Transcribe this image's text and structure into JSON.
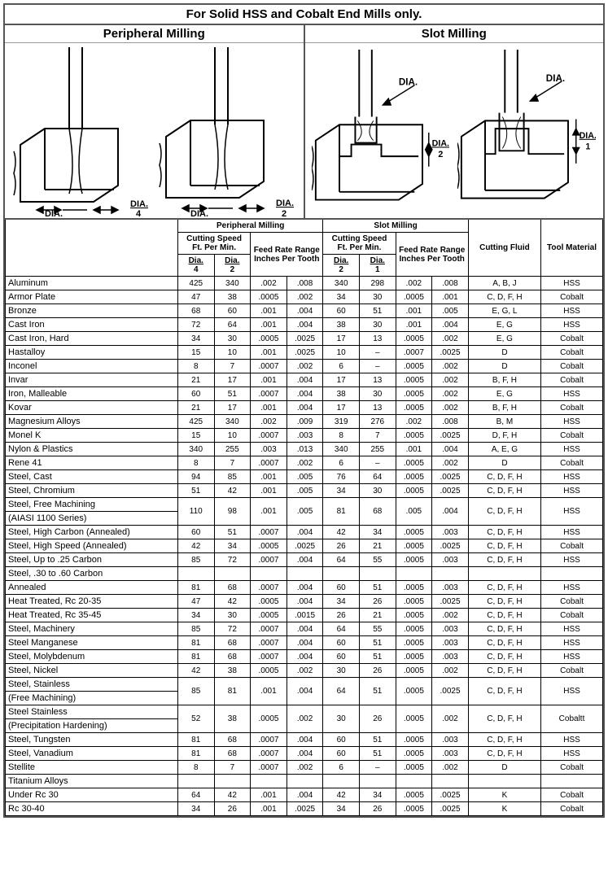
{
  "title": "For Solid HSS and Cobalt End Mills only.",
  "illus": {
    "left_title": "Peripheral Milling",
    "right_title": "Slot Milling",
    "dia_label": "DIA.",
    "frac4": "4",
    "frac2": "2",
    "frac1": "1"
  },
  "head": {
    "per": "Peripheral Milling",
    "slot": "Slot Milling",
    "cs": "Cutting Speed",
    "fpm": "Ft. Per Min.",
    "frr": "Feed Rate Range",
    "ipt": "Inches Per Tooth",
    "dia": "Dia.",
    "d4": "4",
    "d2": "2",
    "d1": "1",
    "fluid": "Cutting Fluid",
    "tool": "Tool Material"
  },
  "rows": [
    {
      "m": "Aluminum",
      "p4": "425",
      "p2": "340",
      "pa": ".002",
      "pb": ".008",
      "s2": "340",
      "s1": "298",
      "sa": ".002",
      "sb": ".008",
      "fl": "A, B, J",
      "tm": "HSS"
    },
    {
      "m": "Armor Plate",
      "p4": "47",
      "p2": "38",
      "pa": ".0005",
      "pb": ".002",
      "s2": "34",
      "s1": "30",
      "sa": ".0005",
      "sb": ".001",
      "fl": "C, D, F, H",
      "tm": "Cobalt"
    },
    {
      "m": "Bronze",
      "p4": "68",
      "p2": "60",
      "pa": ".001",
      "pb": ".004",
      "s2": "60",
      "s1": "51",
      "sa": ".001",
      "sb": ".005",
      "fl": "E, G, L",
      "tm": "HSS"
    },
    {
      "m": "Cast Iron",
      "p4": "72",
      "p2": "64",
      "pa": ".001",
      "pb": ".004",
      "s2": "38",
      "s1": "30",
      "sa": ".001",
      "sb": ".004",
      "fl": "E, G",
      "tm": "HSS"
    },
    {
      "m": "Cast Iron, Hard",
      "p4": "34",
      "p2": "30",
      "pa": ".0005",
      "pb": ".0025",
      "s2": "17",
      "s1": "13",
      "sa": ".0005",
      "sb": ".002",
      "fl": "E, G",
      "tm": "Cobalt"
    },
    {
      "m": "Hastalloy",
      "p4": "15",
      "p2": "10",
      "pa": ".001",
      "pb": ".0025",
      "s2": "10",
      "s1": "–",
      "sa": ".0007",
      "sb": ".0025",
      "fl": "D",
      "tm": "Cobalt"
    },
    {
      "m": "Inconel",
      "p4": "8",
      "p2": "7",
      "pa": ".0007",
      "pb": ".002",
      "s2": "6",
      "s1": "–",
      "sa": ".0005",
      "sb": ".002",
      "fl": "D",
      "tm": "Cobalt"
    },
    {
      "m": "Invar",
      "p4": "21",
      "p2": "17",
      "pa": ".001",
      "pb": ".004",
      "s2": "17",
      "s1": "13",
      "sa": ".0005",
      "sb": ".002",
      "fl": "B, F, H",
      "tm": "Cobalt"
    },
    {
      "m": "Iron, Malleable",
      "p4": "60",
      "p2": "51",
      "pa": ".0007",
      "pb": ".004",
      "s2": "38",
      "s1": "30",
      "sa": ".0005",
      "sb": ".002",
      "fl": "E, G",
      "tm": "HSS"
    },
    {
      "m": "Kovar",
      "p4": "21",
      "p2": "17",
      "pa": ".001",
      "pb": ".004",
      "s2": "17",
      "s1": "13",
      "sa": ".0005",
      "sb": ".002",
      "fl": "B, F, H",
      "tm": "Cobalt"
    },
    {
      "m": "Magnesium Alloys",
      "p4": "425",
      "p2": "340",
      "pa": ".002",
      "pb": ".009",
      "s2": "319",
      "s1": "276",
      "sa": ".002",
      "sb": ".008",
      "fl": "B, M",
      "tm": "HSS"
    },
    {
      "m": "Monel K",
      "p4": "15",
      "p2": "10",
      "pa": ".0007",
      "pb": ".003",
      "s2": "8",
      "s1": "7",
      "sa": ".0005",
      "sb": ".0025",
      "fl": "D, F, H",
      "tm": "Cobalt"
    },
    {
      "m": "Nylon & Plastics",
      "p4": "340",
      "p2": "255",
      "pa": ".003",
      "pb": ".013",
      "s2": "340",
      "s1": "255",
      "sa": ".001",
      "sb": ".004",
      "fl": "A, E, G",
      "tm": "HSS"
    },
    {
      "m": "Rene 41",
      "p4": "8",
      "p2": "7",
      "pa": ".0007",
      "pb": ".002",
      "s2": "6",
      "s1": "–",
      "sa": ".0005",
      "sb": ".002",
      "fl": "D",
      "tm": "Cobalt"
    },
    {
      "m": "Steel, Cast",
      "p4": "94",
      "p2": "85",
      "pa": ".001",
      "pb": ".005",
      "s2": "76",
      "s1": "64",
      "sa": ".0005",
      "sb": ".0025",
      "fl": "C, D, F, H",
      "tm": "HSS"
    },
    {
      "m": "Steel, Chromium",
      "p4": "51",
      "p2": "42",
      "pa": ".001",
      "pb": ".005",
      "s2": "34",
      "s1": "30",
      "sa": ".0005",
      "sb": ".0025",
      "fl": "C, D, F, H",
      "tm": "HSS"
    },
    {
      "m": "Steel, Free Machining",
      "m2": "(AIASI 1100 Series)",
      "p4": "110",
      "p2": "98",
      "pa": ".001",
      "pb": ".005",
      "s2": "81",
      "s1": "68",
      "sa": ".005",
      "sb": ".004",
      "fl": "C, D, F, H",
      "tm": "HSS",
      "two": true
    },
    {
      "m": "Steel, High Carbon (Annealed)",
      "p4": "60",
      "p2": "51",
      "pa": ".0007",
      "pb": ".004",
      "s2": "42",
      "s1": "34",
      "sa": ".0005",
      "sb": ".003",
      "fl": "C, D, F, H",
      "tm": "HSS"
    },
    {
      "m": "Steel, High Speed (Annealed)",
      "p4": "42",
      "p2": "34",
      "pa": ".0005",
      "pb": ".0025",
      "s2": "26",
      "s1": "21",
      "sa": ".0005",
      "sb": ".0025",
      "fl": "C, D, F, H",
      "tm": "Cobalt"
    },
    {
      "m": "Steel, Up to .25 Carbon",
      "p4": "85",
      "p2": "72",
      "pa": ".0007",
      "pb": ".004",
      "s2": "64",
      "s1": "55",
      "sa": ".0005",
      "sb": ".003",
      "fl": "C, D, F, H",
      "tm": "HSS"
    },
    {
      "m": "Steel, .30 to .60 Carbon",
      "header": true
    },
    {
      "m": "Annealed",
      "sub": 1,
      "p4": "81",
      "p2": "68",
      "pa": ".0007",
      "pb": ".004",
      "s2": "60",
      "s1": "51",
      "sa": ".0005",
      "sb": ".003",
      "fl": "C, D, F, H",
      "tm": "HSS"
    },
    {
      "m": "Heat Treated, Rc 20-35",
      "sub": 1,
      "p4": "47",
      "p2": "42",
      "pa": ".0005",
      "pb": ".004",
      "s2": "34",
      "s1": "26",
      "sa": ".0005",
      "sb": ".0025",
      "fl": "C, D, F, H",
      "tm": "Cobalt"
    },
    {
      "m": "Heat Treated, Rc 35-45",
      "sub": 1,
      "p4": "34",
      "p2": "30",
      "pa": ".0005",
      "pb": ".0015",
      "s2": "26",
      "s1": "21",
      "sa": ".0005",
      "sb": ".002",
      "fl": "C, D, F, H",
      "tm": "Cobalt"
    },
    {
      "m": "Steel, Machinery",
      "p4": "85",
      "p2": "72",
      "pa": ".0007",
      "pb": ".004",
      "s2": "64",
      "s1": "55",
      "sa": ".0005",
      "sb": ".003",
      "fl": "C, D, F, H",
      "tm": "HSS"
    },
    {
      "m": "Steel Manganese",
      "p4": "81",
      "p2": "68",
      "pa": ".0007",
      "pb": ".004",
      "s2": "60",
      "s1": "51",
      "sa": ".0005",
      "sb": ".003",
      "fl": "C, D, F, H",
      "tm": "HSS"
    },
    {
      "m": "Steel, Molybdenum",
      "p4": "81",
      "p2": "68",
      "pa": ".0007",
      "pb": ".004",
      "s2": "60",
      "s1": "51",
      "sa": ".0005",
      "sb": ".003",
      "fl": "C, D, F, H",
      "tm": "HSS"
    },
    {
      "m": "Steel, Nickel",
      "p4": "42",
      "p2": "38",
      "pa": ".0005",
      "pb": ".002",
      "s2": "30",
      "s1": "26",
      "sa": ".0005",
      "sb": ".002",
      "fl": "C, D, F, H",
      "tm": "Cobalt"
    },
    {
      "m": "Steel, Stainless",
      "m2": "(Free Machining)",
      "p4": "85",
      "p2": "81",
      "pa": ".001",
      "pb": ".004",
      "s2": "64",
      "s1": "51",
      "sa": ".0005",
      "sb": ".0025",
      "fl": "C, D, F, H",
      "tm": "HSS",
      "two": true
    },
    {
      "m": "Steel Stainless",
      "m2": "(Precipitation Hardening)",
      "p4": "52",
      "p2": "38",
      "pa": ".0005",
      "pb": ".002",
      "s2": "30",
      "s1": "26",
      "sa": ".0005",
      "sb": ".002",
      "fl": "C, D, F, H",
      "tm": "Cobaltt",
      "two": true
    },
    {
      "m": "Steel, Tungsten",
      "p4": "81",
      "p2": "68",
      "pa": ".0007",
      "pb": ".004",
      "s2": "60",
      "s1": "51",
      "sa": ".0005",
      "sb": ".003",
      "fl": "C, D, F, H",
      "tm": "HSS"
    },
    {
      "m": "Steel, Vanadium",
      "p4": "81",
      "p2": "68",
      "pa": ".0007",
      "pb": ".004",
      "s2": "60",
      "s1": "51",
      "sa": ".0005",
      "sb": ".003",
      "fl": "C, D, F, H",
      "tm": "HSS"
    },
    {
      "m": "Stellite",
      "p4": "8",
      "p2": "7",
      "pa": ".0007",
      "pb": ".002",
      "s2": "6",
      "s1": "–",
      "sa": ".0005",
      "sb": ".002",
      "fl": "D",
      "tm": "Cobalt"
    },
    {
      "m": "Titanium Alloys",
      "header": true
    },
    {
      "m": "Under Rc 30",
      "sub": 1,
      "p4": "64",
      "p2": "42",
      "pa": ".001",
      "pb": ".004",
      "s2": "42",
      "s1": "34",
      "sa": ".0005",
      "sb": ".0025",
      "fl": "K",
      "tm": "Cobalt"
    },
    {
      "m": "Rc 30-40",
      "sub": 1,
      "p4": "34",
      "p2": "26",
      "pa": ".001",
      "pb": ".0025",
      "s2": "34",
      "s1": "26",
      "sa": ".0005",
      "sb": ".0025",
      "fl": "K",
      "tm": "Cobalt"
    }
  ]
}
